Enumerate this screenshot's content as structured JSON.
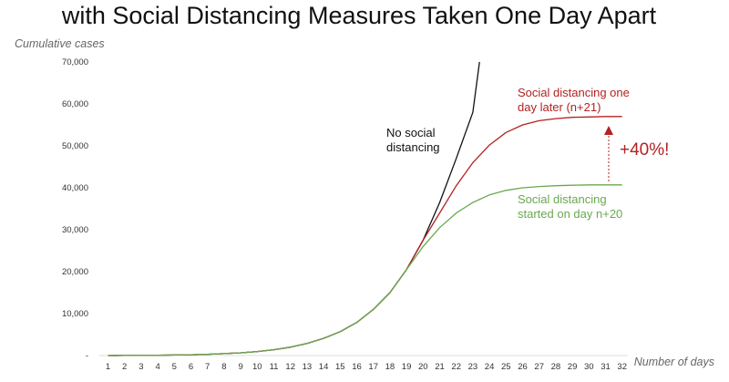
{
  "chart_data": {
    "type": "line",
    "title": "with Social Distancing Measures Taken One Day Apart",
    "ylabel": "Cumulative cases",
    "xlabel": "Number of days",
    "ylim": [
      0,
      70000
    ],
    "yticks": [
      "-",
      "10,000",
      "20,000",
      "30,000",
      "40,000",
      "50,000",
      "60,000",
      "70,000"
    ],
    "ytick_values": [
      0,
      10000,
      20000,
      30000,
      40000,
      50000,
      60000,
      70000
    ],
    "xticks": [
      "1",
      "2",
      "3",
      "4",
      "5",
      "6",
      "7",
      "8",
      "9",
      "10",
      "11",
      "12",
      "13",
      "14",
      "15",
      "16",
      "17",
      "18",
      "19",
      "20",
      "21",
      "22",
      "23",
      "24",
      "25",
      "26",
      "27",
      "28",
      "29",
      "30",
      "31",
      "32"
    ],
    "series": [
      {
        "name": "No social distancing",
        "color": "#111111",
        "x": [
          1,
          2,
          3,
          4,
          5,
          6,
          7,
          8,
          9,
          10,
          11,
          12,
          13,
          14,
          15,
          16,
          17,
          18,
          19,
          20,
          21,
          22,
          23,
          23.4
        ],
        "values": [
          10,
          20,
          40,
          70,
          120,
          200,
          300,
          450,
          650,
          950,
          1400,
          2000,
          2900,
          4100,
          5700,
          7900,
          11000,
          15000,
          20500,
          27500,
          36500,
          47000,
          58000,
          70000
        ]
      },
      {
        "name": "Social distancing one day later (n+21)",
        "color": "#b22222",
        "x": [
          1,
          2,
          3,
          4,
          5,
          6,
          7,
          8,
          9,
          10,
          11,
          12,
          13,
          14,
          15,
          16,
          17,
          18,
          19,
          20,
          21,
          22,
          23,
          24,
          25,
          26,
          27,
          28,
          29,
          30,
          31,
          32
        ],
        "values": [
          10,
          20,
          40,
          70,
          120,
          200,
          300,
          450,
          650,
          950,
          1400,
          2000,
          2900,
          4100,
          5700,
          7900,
          11000,
          15000,
          20500,
          27500,
          34000,
          40500,
          46000,
          50200,
          53200,
          55000,
          56000,
          56500,
          56800,
          56900,
          57000,
          57000
        ]
      },
      {
        "name": "Social distancing started on day n+20",
        "color": "#6aa84f",
        "x": [
          1,
          2,
          3,
          4,
          5,
          6,
          7,
          8,
          9,
          10,
          11,
          12,
          13,
          14,
          15,
          16,
          17,
          18,
          19,
          20,
          21,
          22,
          23,
          24,
          25,
          26,
          27,
          28,
          29,
          30,
          31,
          32
        ],
        "values": [
          10,
          20,
          40,
          70,
          120,
          200,
          300,
          450,
          650,
          950,
          1400,
          2000,
          2900,
          4100,
          5700,
          7900,
          11000,
          15000,
          20500,
          26000,
          30500,
          34000,
          36500,
          38300,
          39400,
          40000,
          40300,
          40500,
          40600,
          40700,
          40700,
          40700
        ]
      }
    ],
    "annotations": {
      "no_sd": [
        "No social",
        "distancing"
      ],
      "later": [
        "Social distancing one",
        "day later (n+21)"
      ],
      "started": [
        "Social distancing",
        "started on day n+20"
      ],
      "increase": "+40%!"
    }
  }
}
